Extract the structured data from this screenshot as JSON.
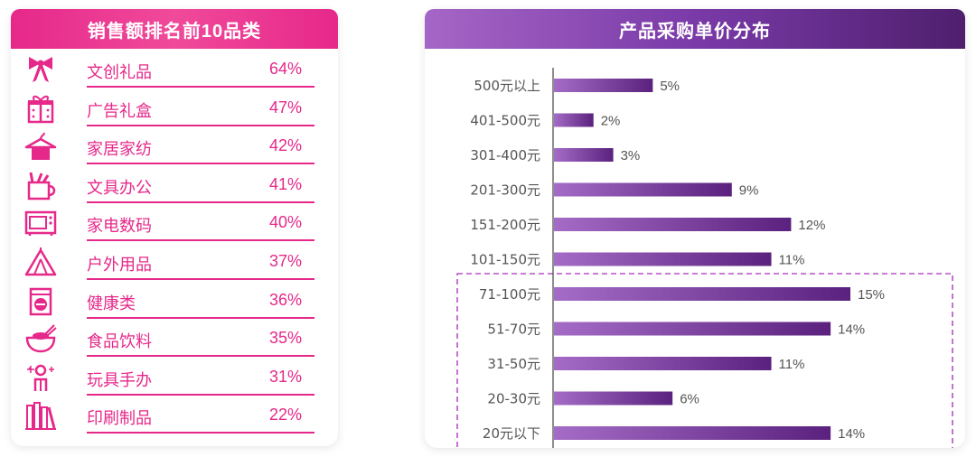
{
  "colors": {
    "pink": "#e6288a",
    "purple": "#6a2c8f",
    "purple_light": "#a46cc6"
  },
  "left_panel": {
    "title": "销售额排名前10品类",
    "items": [
      {
        "name": "文创礼品",
        "value": "64%",
        "icon": "bow-icon"
      },
      {
        "name": "广告礼盒",
        "value": "47%",
        "icon": "gift-box-icon"
      },
      {
        "name": "家居家纺",
        "value": "42%",
        "icon": "hanger-icon"
      },
      {
        "name": "文具办公",
        "value": "41%",
        "icon": "stationery-cup-icon"
      },
      {
        "name": "家电数码",
        "value": "40%",
        "icon": "microwave-icon"
      },
      {
        "name": "户外用品",
        "value": "37%",
        "icon": "tent-icon"
      },
      {
        "name": "健康类",
        "value": "36%",
        "icon": "medicine-bag-icon"
      },
      {
        "name": "食品饮料",
        "value": "35%",
        "icon": "bowl-icon"
      },
      {
        "name": "玩具手办",
        "value": "31%",
        "icon": "figure-icon"
      },
      {
        "name": "印刷制品",
        "value": "22%",
        "icon": "books-icon"
      }
    ]
  },
  "chart_data": {
    "type": "bar",
    "orientation": "horizontal",
    "title": "产品采购单价分布",
    "categories": [
      "500元以上",
      "401-500元",
      "301-400元",
      "201-300元",
      "151-200元",
      "101-150元",
      "71-100元",
      "51-70元",
      "31-50元",
      "20-30元",
      "20元以下"
    ],
    "values": [
      5,
      2,
      3,
      9,
      12,
      11,
      15,
      14,
      11,
      6,
      14
    ],
    "value_labels": [
      "5%",
      "2%",
      "3%",
      "9%",
      "12%",
      "11%",
      "15%",
      "14%",
      "11%",
      "6%",
      "14%"
    ],
    "xlim": [
      0,
      15
    ],
    "grid": false,
    "highlight": {
      "from": "71-100元",
      "to": "20元以下",
      "style": "dashed box"
    }
  }
}
